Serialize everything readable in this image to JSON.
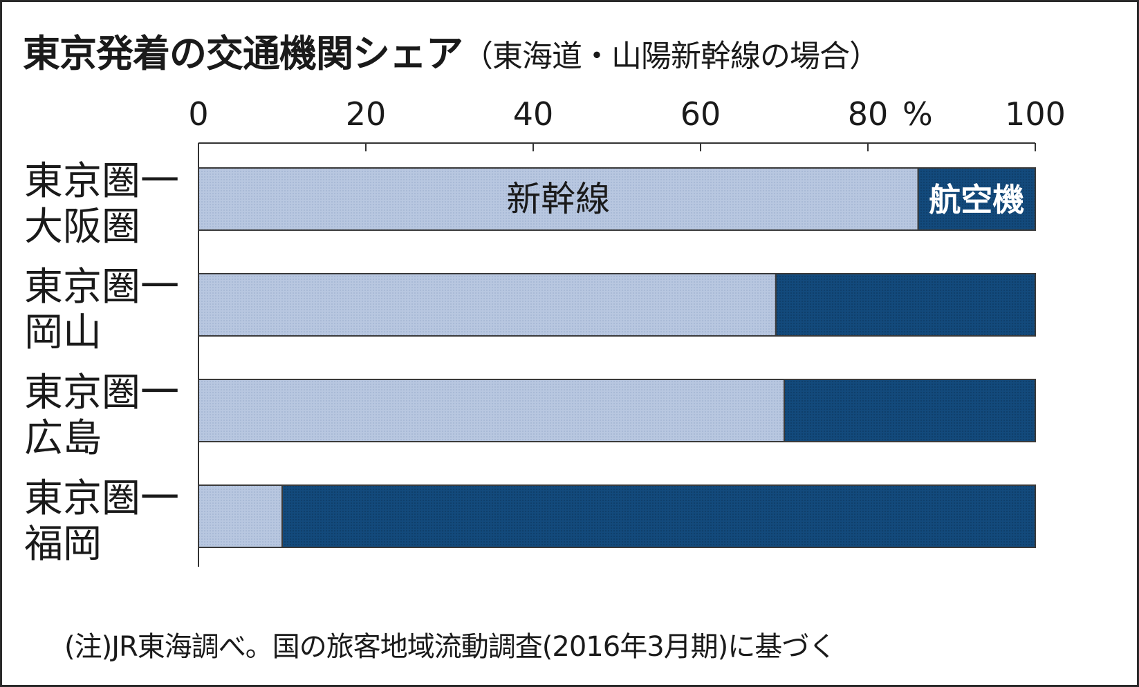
{
  "title": "東京発着の交通機関シェア",
  "subtitle": "（東海道・山陽新幹線の場合）",
  "footnote": "(注)JR東海調べ。国の旅客地域流動調査(2016年3月期)に基づく",
  "chart_data": {
    "type": "bar",
    "orientation": "horizontal",
    "stacked": true,
    "unit_label": "%",
    "xlim": [
      0,
      100
    ],
    "ticks": [
      "0",
      "20",
      "40",
      "60",
      "80",
      "100"
    ],
    "categories": [
      [
        "東京圏一",
        "大阪圏"
      ],
      [
        "東京圏一",
        "岡山"
      ],
      [
        "東京圏一",
        "広島"
      ],
      [
        "東京圏一",
        "福岡"
      ]
    ],
    "series": [
      {
        "name": "新幹線",
        "values": [
          86,
          69,
          70,
          10
        ]
      },
      {
        "name": "航空機",
        "values": [
          14,
          31,
          30,
          90
        ]
      }
    ],
    "colors": {
      "shinkansen": "#b8c7e0",
      "airplane": "#134a7c"
    },
    "grid": false,
    "legend": "inline labels in first bar"
  }
}
